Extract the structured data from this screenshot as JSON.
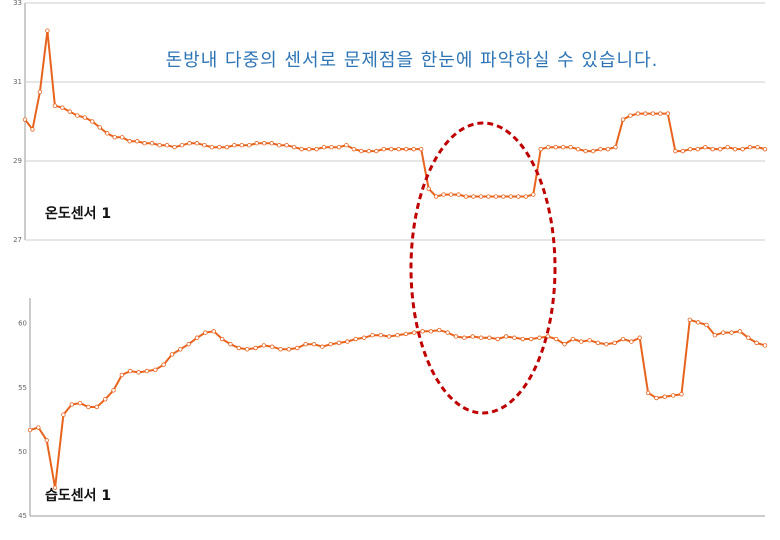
{
  "title": "돈방내 다중의 센서로 문제점을 한눈에 파악하실 수 있습니다.",
  "chart_data": [
    {
      "type": "line",
      "label": "온도센서 1",
      "color": "#e8641e",
      "grid": true,
      "ylim": [
        27,
        33
      ],
      "yticks": [
        27,
        29,
        31,
        33
      ],
      "values": [
        30.05,
        29.8,
        30.75,
        32.3,
        30.4,
        30.35,
        30.25,
        30.15,
        30.1,
        30.0,
        29.85,
        29.7,
        29.6,
        29.6,
        29.5,
        29.5,
        29.45,
        29.45,
        29.4,
        29.4,
        29.35,
        29.4,
        29.45,
        29.45,
        29.4,
        29.35,
        29.35,
        29.35,
        29.4,
        29.4,
        29.4,
        29.45,
        29.45,
        29.45,
        29.4,
        29.4,
        29.35,
        29.3,
        29.3,
        29.3,
        29.35,
        29.35,
        29.35,
        29.4,
        29.3,
        29.25,
        29.25,
        29.25,
        29.3,
        29.3,
        29.3,
        29.3,
        29.3,
        29.3,
        28.3,
        28.1,
        28.15,
        28.15,
        28.15,
        28.1,
        28.1,
        28.1,
        28.1,
        28.1,
        28.1,
        28.1,
        28.1,
        28.1,
        28.15,
        29.3,
        29.35,
        29.35,
        29.35,
        29.35,
        29.3,
        29.25,
        29.25,
        29.3,
        29.3,
        29.35,
        30.05,
        30.15,
        30.2,
        30.2,
        30.2,
        30.2,
        30.2,
        29.25,
        29.25,
        29.3,
        29.3,
        29.35,
        29.3,
        29.3,
        29.35,
        29.3,
        29.3,
        29.35,
        29.35,
        29.3
      ]
    },
    {
      "type": "line",
      "label": "습도센서 1",
      "color": "#e8641e",
      "grid": false,
      "ylim": [
        45,
        62
      ],
      "yticks": [
        45,
        50,
        55,
        60
      ],
      "values": [
        51.7,
        51.9,
        50.9,
        47.2,
        52.9,
        53.7,
        53.8,
        53.5,
        53.5,
        54.1,
        54.8,
        56.0,
        56.3,
        56.2,
        56.3,
        56.4,
        56.8,
        57.6,
        58.0,
        58.4,
        58.9,
        59.3,
        59.4,
        58.8,
        58.4,
        58.1,
        58.0,
        58.1,
        58.3,
        58.2,
        58.0,
        58.0,
        58.1,
        58.4,
        58.4,
        58.2,
        58.4,
        58.5,
        58.6,
        58.8,
        58.9,
        59.1,
        59.1,
        59.0,
        59.1,
        59.2,
        59.3,
        59.4,
        59.4,
        59.5,
        59.3,
        59.0,
        58.9,
        59.0,
        58.9,
        58.9,
        58.8,
        59.0,
        58.9,
        58.8,
        58.8,
        58.9,
        59.0,
        58.8,
        58.4,
        58.8,
        58.6,
        58.7,
        58.5,
        58.4,
        58.5,
        58.8,
        58.6,
        58.9,
        54.6,
        54.2,
        54.3,
        54.4,
        54.5,
        60.3,
        60.1,
        59.9,
        59.1,
        59.3,
        59.3,
        59.4,
        58.9,
        58.5,
        58.3
      ]
    }
  ]
}
